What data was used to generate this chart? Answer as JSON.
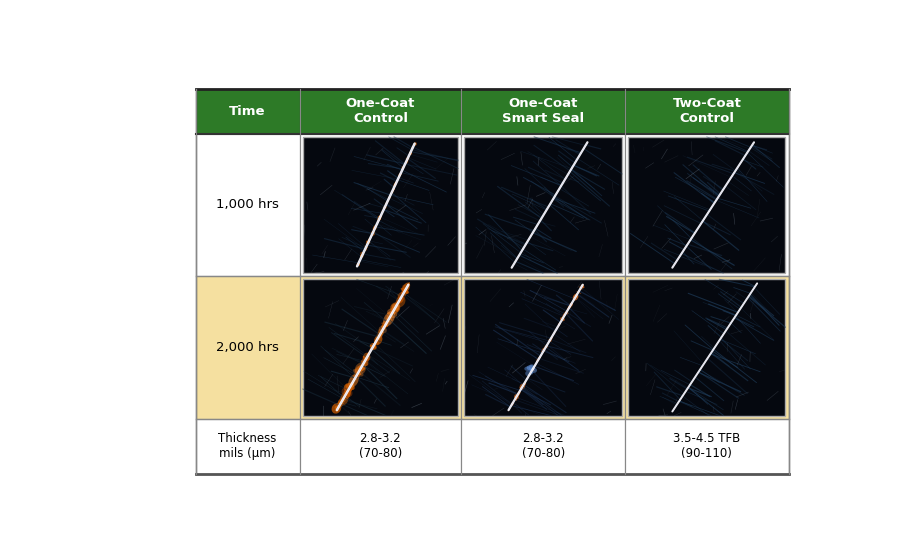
{
  "header_bg_color": "#2d7a27",
  "header_text_color": "#ffffff",
  "row2_bg_color": "#f5e0a0",
  "white_bg": "#ffffff",
  "header_labels": [
    "Time",
    "One-Coat\nControl",
    "One-Coat\nSmart Seal",
    "Two-Coat\nControl"
  ],
  "row_labels": [
    "1,000 hrs",
    "2,000 hrs"
  ],
  "thickness_label": "Thickness\nmils (μm)",
  "thickness_values": [
    "2.8-3.2\n(70-80)",
    "2.8-3.2\n(70-80)",
    "3.5-4.5 TFB\n(90-110)"
  ],
  "panel_bg_dark": "#05080f",
  "panel_texture_colors": [
    "#0a1e30",
    "#081828",
    "#0c2035",
    "#061520"
  ],
  "scratch_color": "#e8e8ff",
  "rust_color_1": "#c85a00",
  "rust_color_2": "#b04500",
  "rust_color_3": "#d06010",
  "blue_glow_color": "#6090d8"
}
